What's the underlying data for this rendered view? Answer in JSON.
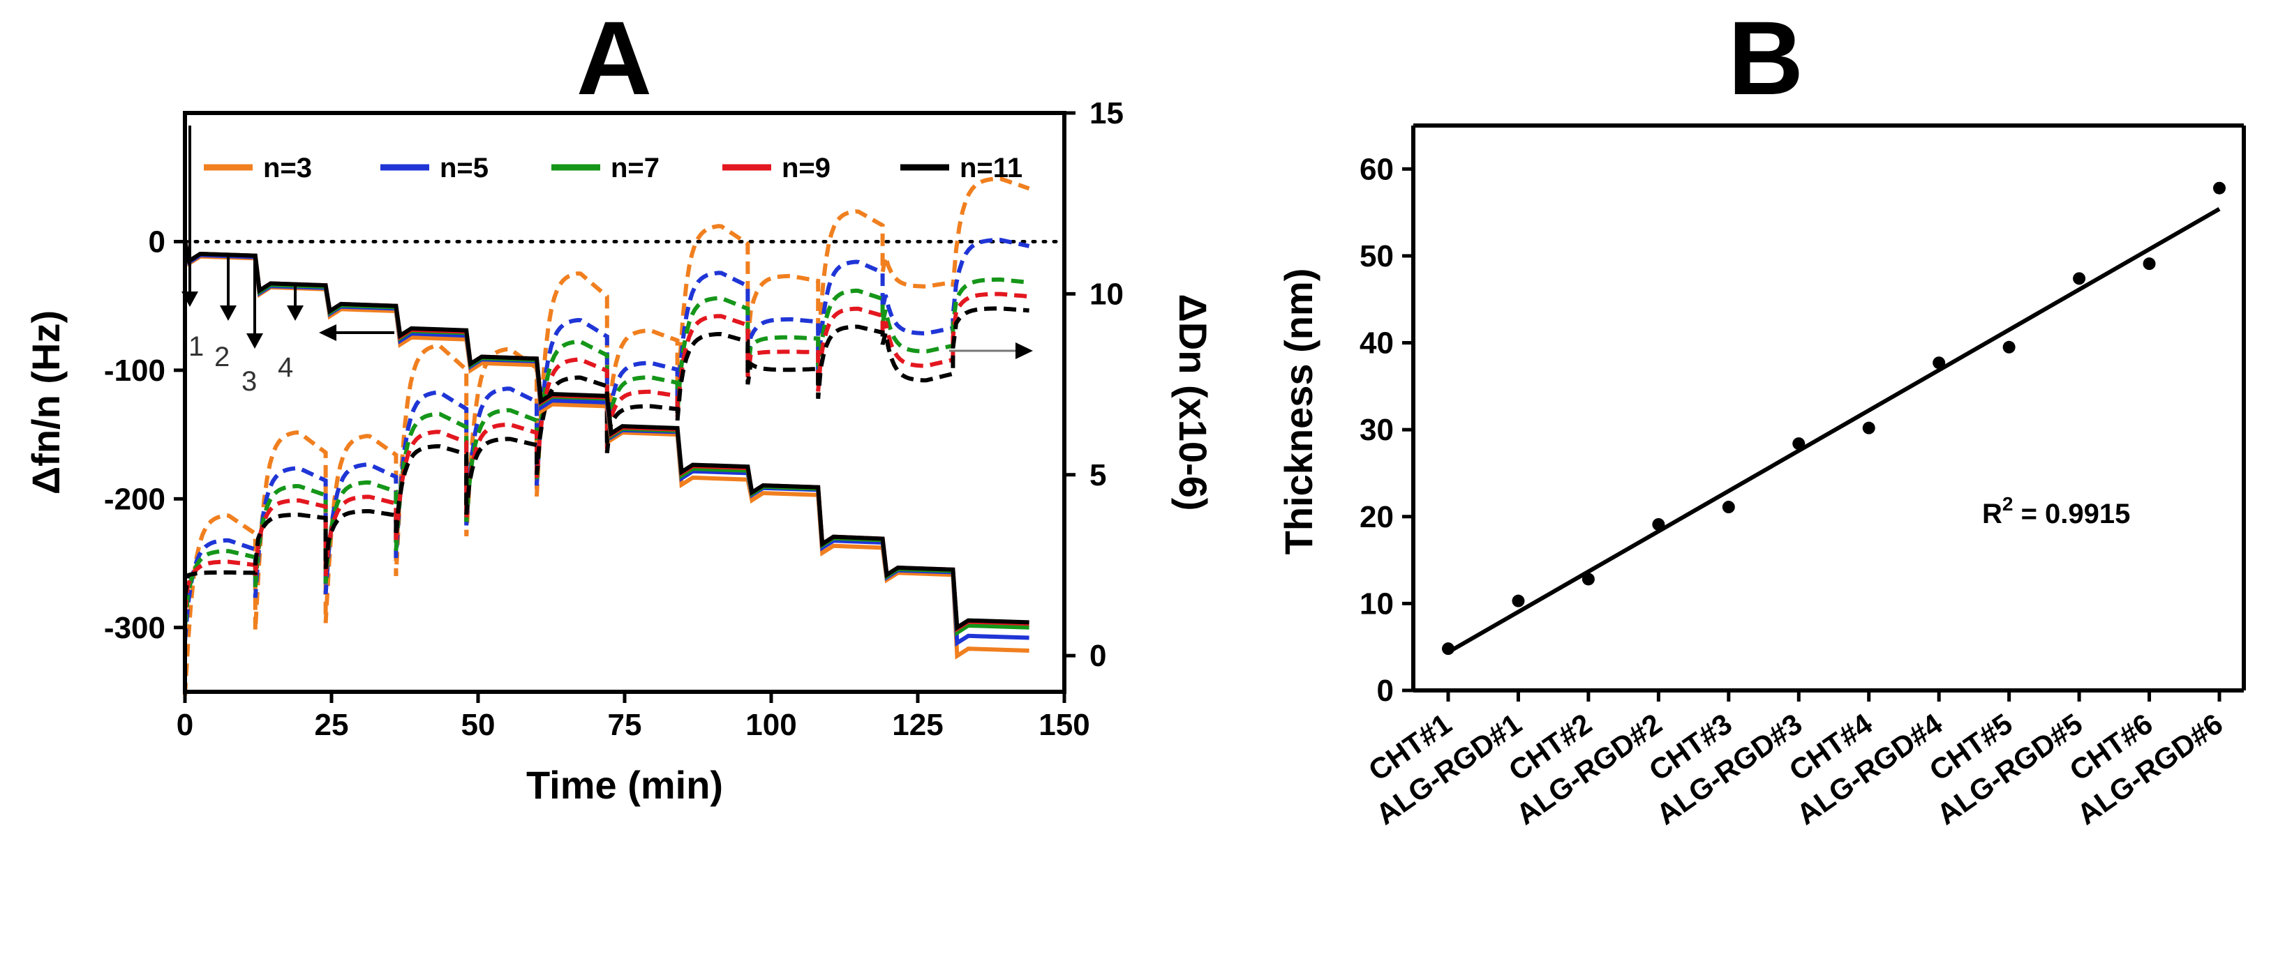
{
  "chart_data": [
    {
      "panel": "A",
      "type": "line",
      "title": "A",
      "xlabel": "Time (min)",
      "ylabel_left": "Δfn/n (Hz)",
      "ylabel_right": "ΔDn (x10-6)",
      "xlim": [
        0,
        150
      ],
      "ylim_left": [
        -350,
        100
      ],
      "ylim_right": [
        -1,
        15
      ],
      "x_ticks": [
        "0",
        "25",
        "50",
        "75",
        "100",
        "125",
        "150"
      ],
      "y_left_ticks": [
        "0",
        "-100",
        "-200",
        "-300"
      ],
      "y_right_ticks": [
        "0",
        "5",
        "10",
        "15"
      ],
      "baseline_dotted_y": 0,
      "legend": [
        "n=3",
        "n=5",
        "n=7",
        "n=9",
        "n=11"
      ],
      "series_colors": [
        "#f07f1f",
        "#1f35d6",
        "#159619",
        "#e3171f",
        "#000000"
      ],
      "step_times": [
        0,
        12,
        24,
        36,
        48,
        60,
        72,
        84,
        96,
        108,
        119,
        131,
        144
      ],
      "frequency_series": [
        {
          "name": "n=3",
          "values": [
            0,
            -13,
            -37,
            -54,
            -76,
            -96,
            -128,
            -150,
            -185,
            -197,
            -238,
            -259,
            -318
          ]
        },
        {
          "name": "n=5",
          "values": [
            0,
            -12,
            -36,
            -52,
            -73,
            -93,
            -125,
            -148,
            -180,
            -193,
            -234,
            -257,
            -308
          ]
        },
        {
          "name": "n=7",
          "values": [
            0,
            -11,
            -35,
            -51,
            -71,
            -92,
            -122,
            -147,
            -178,
            -192,
            -232,
            -256,
            -300
          ]
        },
        {
          "name": "n=9",
          "values": [
            0,
            -11,
            -34,
            -50,
            -70,
            -91,
            -121,
            -146,
            -176,
            -191,
            -231,
            -255,
            -297
          ]
        },
        {
          "name": "n=11",
          "values": [
            0,
            -11,
            -34,
            -50,
            -69,
            -91,
            -120,
            -145,
            -175,
            -191,
            -231,
            -255,
            -296
          ]
        }
      ],
      "dissipation_series": [
        {
          "name": "n=3",
          "start": [
            -0.5,
            1.3,
            1.5,
            2.8,
            3.9,
            5.0,
            6.6,
            7.6,
            9.3,
            8.9,
            11.2,
            10.8
          ],
          "peak": [
            3.9,
            6.2,
            6.1,
            8.6,
            8.5,
            10.6,
            9.0,
            11.9,
            10.5,
            12.3,
            10.2,
            13.2
          ]
        },
        {
          "name": "n=5",
          "start": [
            1.0,
            2.2,
            2.3,
            3.3,
            4.2,
            5.3,
            6.5,
            7.4,
            8.7,
            8.3,
            10.2,
            10.0
          ],
          "peak": [
            3.2,
            5.2,
            5.3,
            7.3,
            7.4,
            9.3,
            8.1,
            10.6,
            9.3,
            10.9,
            8.9,
            11.5
          ]
        },
        {
          "name": "n=7",
          "start": [
            1.4,
            2.5,
            2.6,
            3.5,
            4.3,
            5.4,
            6.4,
            7.3,
            8.5,
            8.1,
            9.8,
            9.7
          ],
          "peak": [
            2.9,
            4.7,
            4.8,
            6.7,
            6.8,
            8.7,
            7.7,
            9.9,
            8.8,
            10.1,
            8.4,
            10.4
          ]
        },
        {
          "name": "n=9",
          "start": [
            1.8,
            2.8,
            2.8,
            3.7,
            4.4,
            5.5,
            6.3,
            7.2,
            8.3,
            7.9,
            9.5,
            9.4
          ],
          "peak": [
            2.6,
            4.3,
            4.4,
            6.2,
            6.4,
            8.2,
            7.3,
            9.4,
            8.4,
            9.6,
            8.0,
            10.0
          ]
        },
        {
          "name": "n=11",
          "start": [
            2.2,
            3.1,
            3.0,
            3.9,
            4.5,
            5.6,
            6.2,
            7.1,
            8.1,
            7.7,
            9.2,
            9.1
          ],
          "peak": [
            2.3,
            3.9,
            4.0,
            5.8,
            6.0,
            7.7,
            6.9,
            8.9,
            7.9,
            9.1,
            7.6,
            9.6
          ]
        }
      ],
      "step_labels": [
        "1",
        "2",
        "3",
        "4"
      ]
    },
    {
      "panel": "B",
      "type": "scatter",
      "title": "B",
      "xlabel": "",
      "ylabel": "Thickness (nm)",
      "ylim": [
        0,
        65
      ],
      "y_ticks": [
        "0",
        "10",
        "20",
        "30",
        "40",
        "50",
        "60"
      ],
      "categories": [
        "CHT#1",
        "ALG-RGD#1",
        "CHT#2",
        "ALG-RGD#2",
        "CHT#3",
        "ALG-RGD#3",
        "CHT#4",
        "ALG-RGD#4",
        "CHT#5",
        "ALG-RGD#5",
        "CHT#6",
        "ALG-RGD#6"
      ],
      "values": [
        4.8,
        10.3,
        12.8,
        19.1,
        21.1,
        28.4,
        30.2,
        37.7,
        39.5,
        47.4,
        49.1,
        57.8
      ],
      "fit_line": {
        "start": 4.4,
        "end": 55.4
      },
      "annotation": {
        "text": "R",
        "sup": "2",
        "rest": " = 0.9915"
      }
    }
  ]
}
